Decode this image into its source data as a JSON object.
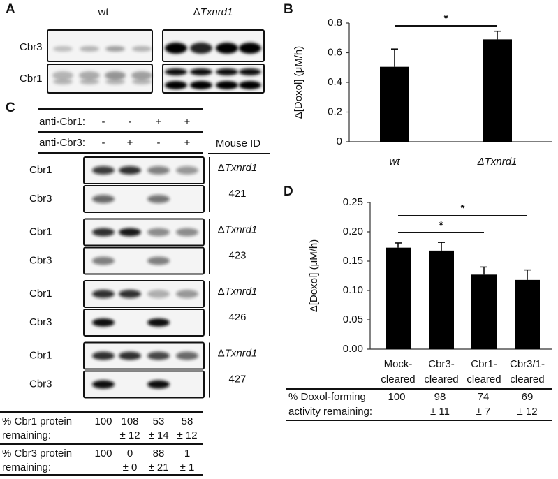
{
  "panel_labels": [
    "A",
    "B",
    "C",
    "D"
  ],
  "blot_a": {
    "groups": [
      [
        "wt"
      ],
      [
        "Δ",
        "Txnrd1"
      ]
    ],
    "rows": [
      "Cbr3",
      "Cbr1"
    ]
  },
  "panel_c": {
    "conditions": [
      {
        "label": "anti-Cbr1:",
        "marks": [
          "-",
          "-",
          "+",
          "+"
        ]
      },
      {
        "label": "anti-Cbr3:",
        "marks": [
          "-",
          "+",
          "-",
          "+"
        ]
      }
    ],
    "mouse_header": "Mouse ID",
    "mice": [
      {
        "genotype": [
          "Δ",
          "Txnrd1"
        ],
        "id": "421",
        "rows": [
          "Cbr1",
          "Cbr3"
        ]
      },
      {
        "genotype": [
          "Δ",
          "Txnrd1"
        ],
        "id": "423",
        "rows": [
          "Cbr1",
          "Cbr3"
        ]
      },
      {
        "genotype": [
          "Δ",
          "Txnrd1"
        ],
        "id": "426",
        "rows": [
          "Cbr1",
          "Cbr3"
        ]
      },
      {
        "genotype": [
          "Δ",
          "Txnrd1"
        ],
        "id": "427",
        "rows": [
          "Cbr1",
          "Cbr3"
        ]
      }
    ],
    "table": [
      {
        "label": [
          "% Cbr1 protein",
          "remaining:"
        ],
        "columns": [
          {
            "value": "100"
          },
          {
            "value": "108",
            "error": "± 12"
          },
          {
            "value": "53",
            "error": "± 14"
          },
          {
            "value": "58",
            "error": "± 12"
          }
        ]
      },
      {
        "label": [
          "% Cbr3 protein",
          "remaining:"
        ],
        "columns": [
          {
            "value": "100"
          },
          {
            "value": "0",
            "error": "± 0"
          },
          {
            "value": "88",
            "error": "± 21"
          },
          {
            "value": "1",
            "error": "± 1"
          }
        ]
      }
    ]
  },
  "panel_d_table": {
    "label": [
      "% Doxol-forming",
      "activity remaining:"
    ],
    "columns": [
      {
        "value": "100"
      },
      {
        "value": "98",
        "error": "± 11"
      },
      {
        "value": "74",
        "error": "± 7"
      },
      {
        "value": "69",
        "error": "± 12"
      }
    ]
  },
  "chart_data": [
    {
      "type": "bar",
      "y_label": "Δ[Doxol] (μM/h)",
      "categories": [
        "wt",
        "ΔTxnrd1"
      ],
      "values": [
        0.505,
        0.69
      ],
      "errors": [
        0.12,
        0.055
      ],
      "color": "#000000",
      "ylim": [
        0,
        0.8
      ],
      "yticks": [
        0,
        0.2,
        0.4,
        0.6,
        0.8
      ],
      "annotations": [
        {
          "text": "*",
          "from": 0,
          "to": 1
        }
      ]
    },
    {
      "type": "bar",
      "y_label": "Δ[Doxol] (μM/h)",
      "categories": [
        [
          "Mock-",
          "cleared"
        ],
        [
          "Cbr3-",
          "cleared"
        ],
        [
          "Cbr1-",
          "cleared"
        ],
        [
          "Cbr3/1-",
          "cleared"
        ]
      ],
      "values": [
        0.173,
        0.168,
        0.127,
        0.118
      ],
      "errors": [
        0.008,
        0.014,
        0.013,
        0.017
      ],
      "color": "#000000",
      "ylim": [
        0,
        0.25
      ],
      "yticks": [
        {
          "value": 0,
          "label": "0.00"
        },
        {
          "value": 0.05,
          "label": "0.05"
        },
        {
          "value": 0.1,
          "label": "0.10"
        },
        {
          "value": 0.15,
          "label": "0.15"
        },
        {
          "value": 0.2,
          "label": "0.20"
        },
        {
          "value": 0.25,
          "label": "0.25"
        }
      ],
      "annotations": [
        {
          "text": "*",
          "from": 0,
          "to": 2
        },
        {
          "text": "*",
          "from": 0,
          "to": 3
        }
      ]
    }
  ]
}
